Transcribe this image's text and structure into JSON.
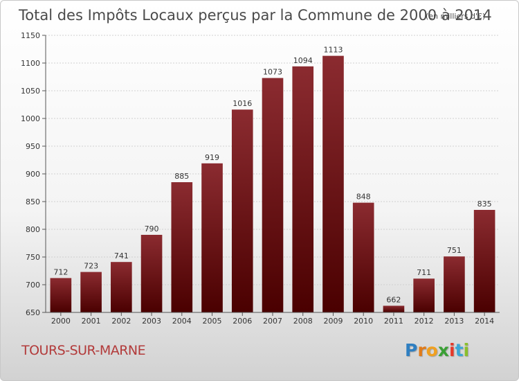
{
  "chart_data": {
    "type": "bar",
    "title": "Total des Impôts Locaux perçus par la Commune de 2000 à 2014",
    "title_unit": "(en milliers d'€)",
    "categories": [
      "2000",
      "2001",
      "2002",
      "2003",
      "2004",
      "2005",
      "2006",
      "2007",
      "2008",
      "2009",
      "2010",
      "2011",
      "2012",
      "2013",
      "2014"
    ],
    "values": [
      712,
      723,
      741,
      790,
      885,
      919,
      1016,
      1073,
      1094,
      1113,
      848,
      662,
      711,
      751,
      835
    ],
    "ylim": [
      650,
      1150
    ],
    "yticks": [
      650,
      700,
      750,
      800,
      850,
      900,
      950,
      1000,
      1050,
      1100,
      1150
    ],
    "xlabel": "",
    "ylabel": "",
    "grid": true,
    "bar_color_top": "#8b2b30",
    "bar_color_bottom": "#4a0000"
  },
  "footer": {
    "commune": "TOURS-SUR-MARNE",
    "logo_letters": [
      "P",
      "r",
      "o",
      "x",
      "i",
      "t",
      "i"
    ],
    "logo_colors": [
      "#2f7fc1",
      "#e07b1a",
      "#f0a020",
      "#3aa035",
      "#e53a2a",
      "#3aa7d6",
      "#8bbf2c"
    ]
  }
}
